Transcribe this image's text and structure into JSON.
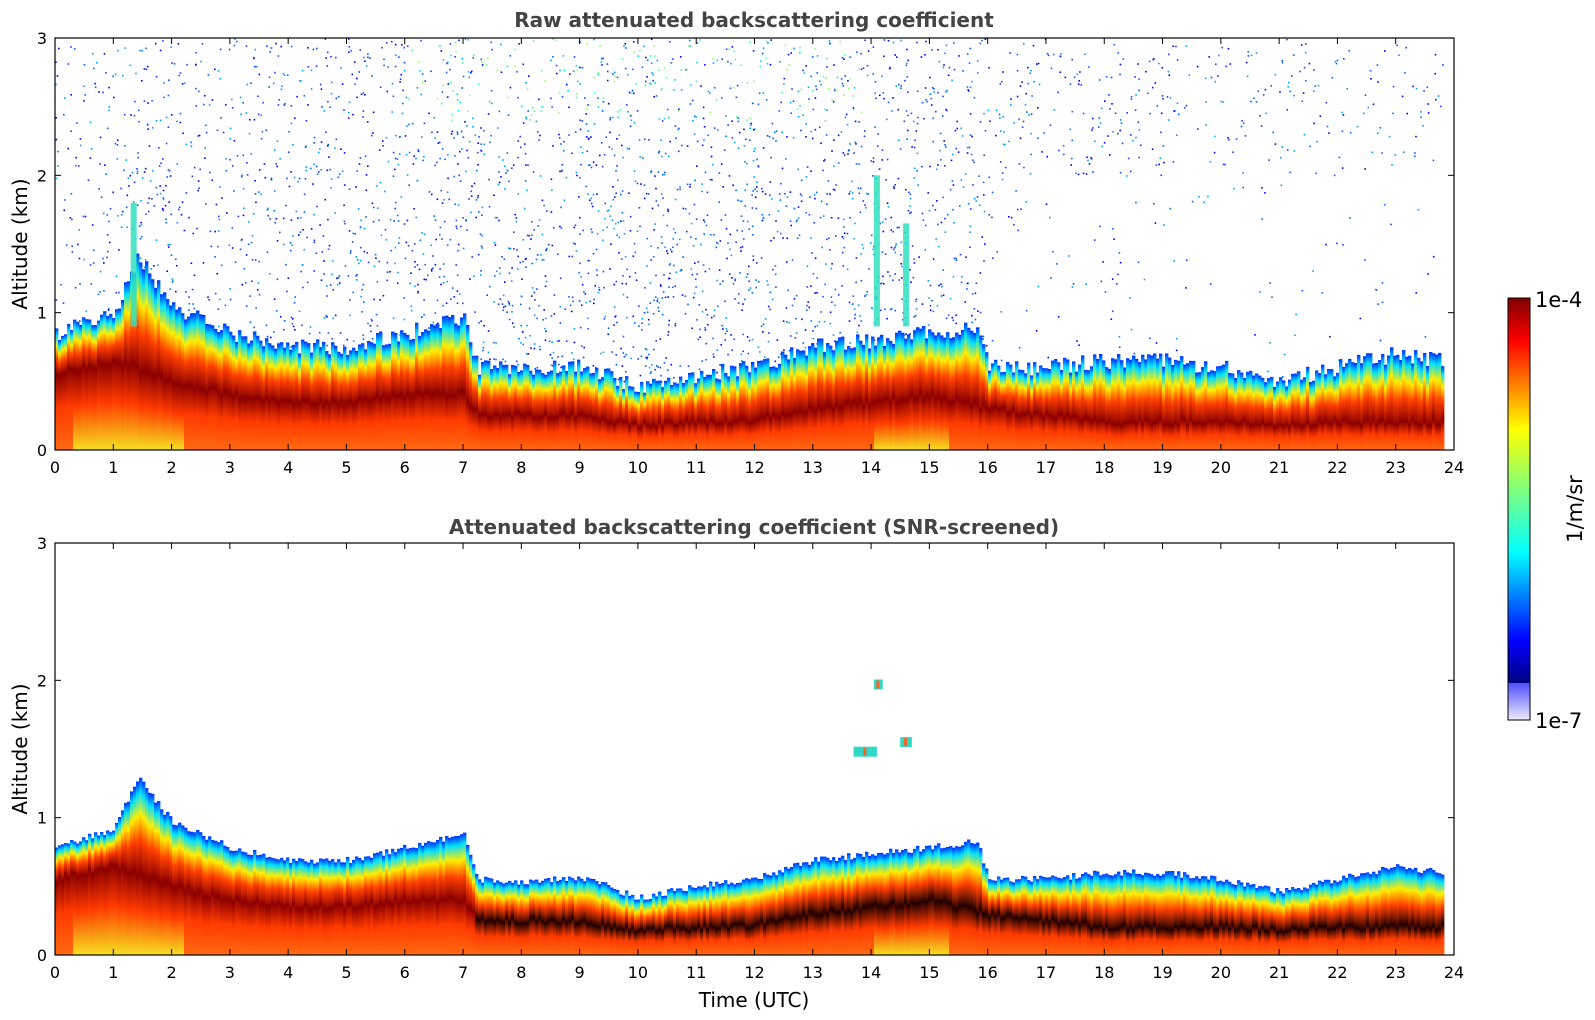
{
  "chart_data": [
    {
      "type": "heatmap",
      "title": "Raw attenuated backscattering coefficient",
      "xlabel": "",
      "ylabel": "Altitude (km)",
      "xlim": [
        0,
        24
      ],
      "ylim": [
        0,
        3
      ],
      "x_ticks": [
        0,
        1,
        2,
        3,
        4,
        5,
        6,
        7,
        8,
        9,
        10,
        11,
        12,
        13,
        14,
        15,
        16,
        17,
        18,
        19,
        20,
        21,
        22,
        23,
        24
      ],
      "y_ticks": [
        0,
        1,
        2,
        3
      ],
      "data_end_time": 23.8,
      "boundary_layer_top_km": [
        [
          0,
          0.85
        ],
        [
          1,
          1.0
        ],
        [
          1.4,
          1.4
        ],
        [
          2,
          1.05
        ],
        [
          3,
          0.85
        ],
        [
          4,
          0.75
        ],
        [
          5,
          0.75
        ],
        [
          6,
          0.85
        ],
        [
          7,
          0.95
        ],
        [
          7.25,
          0.6
        ],
        [
          8,
          0.58
        ],
        [
          9,
          0.62
        ],
        [
          10,
          0.45
        ],
        [
          11,
          0.55
        ],
        [
          12,
          0.6
        ],
        [
          13,
          0.75
        ],
        [
          14,
          0.8
        ],
        [
          15,
          0.85
        ],
        [
          15.8,
          0.9
        ],
        [
          16,
          0.6
        ],
        [
          17,
          0.6
        ],
        [
          18,
          0.65
        ],
        [
          19,
          0.65
        ],
        [
          20,
          0.6
        ],
        [
          21,
          0.5
        ],
        [
          22,
          0.6
        ],
        [
          23,
          0.7
        ],
        [
          23.8,
          0.65
        ]
      ],
      "high_backscatter_layer_km": [
        [
          0,
          0.55
        ],
        [
          1,
          0.65
        ],
        [
          2,
          0.5
        ],
        [
          3,
          0.4
        ],
        [
          4,
          0.35
        ],
        [
          5,
          0.35
        ],
        [
          6,
          0.4
        ],
        [
          7,
          0.4
        ],
        [
          7.25,
          0.25
        ],
        [
          8,
          0.25
        ],
        [
          9,
          0.25
        ],
        [
          10,
          0.18
        ],
        [
          11,
          0.2
        ],
        [
          12,
          0.22
        ],
        [
          13,
          0.3
        ],
        [
          14,
          0.35
        ],
        [
          15,
          0.4
        ],
        [
          16,
          0.3
        ],
        [
          17,
          0.25
        ],
        [
          18,
          0.2
        ],
        [
          19,
          0.2
        ],
        [
          20,
          0.2
        ],
        [
          21,
          0.18
        ],
        [
          22,
          0.2
        ],
        [
          23,
          0.2
        ],
        [
          23.8,
          0.2
        ]
      ],
      "plumes": [
        {
          "time": 1.35,
          "top_km": 1.8
        },
        {
          "time": 14.1,
          "top_km": 2.0
        },
        {
          "time": 14.6,
          "top_km": 1.65
        }
      ],
      "sparse_noise_region_km": [
        0.5,
        3.0
      ]
    },
    {
      "type": "heatmap",
      "title": "Attenuated backscattering coefficient (SNR-screened)",
      "xlabel": "Time (UTC)",
      "ylabel": "Altitude (km)",
      "xlim": [
        0,
        24
      ],
      "ylim": [
        0,
        3
      ],
      "x_ticks": [
        0,
        1,
        2,
        3,
        4,
        5,
        6,
        7,
        8,
        9,
        10,
        11,
        12,
        13,
        14,
        15,
        16,
        17,
        18,
        19,
        20,
        21,
        22,
        23,
        24
      ],
      "y_ticks": [
        0,
        1,
        2,
        3
      ],
      "data_end_time": 23.8,
      "elevated_features": [
        {
          "time_start": 13.7,
          "time_end": 14.1,
          "altitude_km": 1.48
        },
        {
          "time_start": 14.5,
          "time_end": 14.7,
          "altitude_km": 1.55
        },
        {
          "time_start": 14.05,
          "time_end": 14.2,
          "altitude_km": 1.97
        }
      ]
    }
  ],
  "colorbar": {
    "label": "1/m/sr",
    "max_label": "1e-4",
    "min_label": "1e-7",
    "colormap": "jet",
    "scale": "log",
    "range": [
      1e-07,
      0.0001
    ]
  }
}
